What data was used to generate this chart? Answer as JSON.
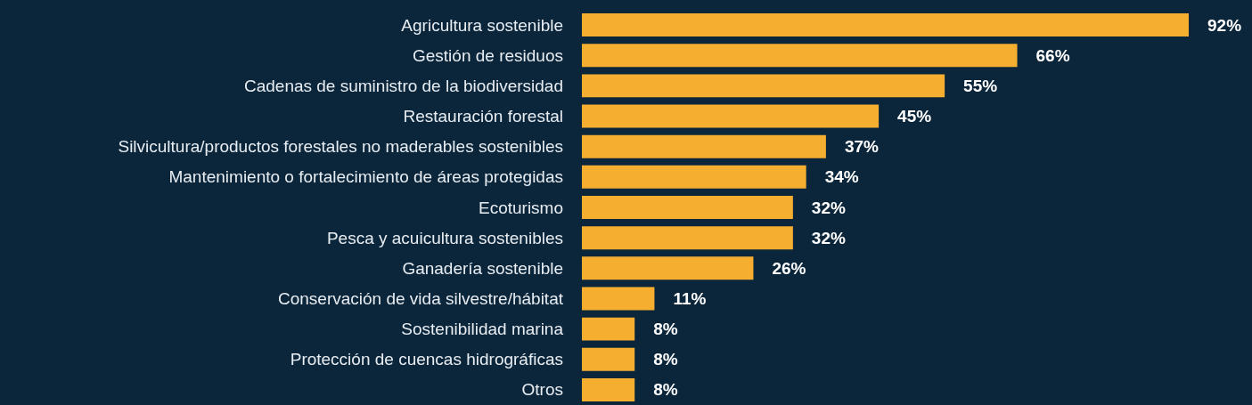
{
  "chart_data": {
    "type": "bar",
    "orientation": "horizontal",
    "categories": [
      "Agricultura sostenible",
      "Gestión de residuos",
      "Cadenas de suministro de la biodiversidad",
      "Restauración forestal",
      "Silvicultura/productos forestales no maderables sostenibles",
      "Mantenimiento o fortalecimiento de áreas protegidas",
      "Ecoturismo",
      "Pesca y acuicultura sostenibles",
      "Ganadería sostenible",
      "Conservación de vida silvestre/hábitat",
      "Sostenibilidad marina",
      "Protección de cuencas hidrográficas",
      "Otros"
    ],
    "values": [
      92,
      66,
      55,
      45,
      37,
      34,
      32,
      32,
      26,
      11,
      8,
      8,
      8
    ],
    "value_labels": [
      "92%",
      "66%",
      "55%",
      "45%",
      "37%",
      "34%",
      "32%",
      "32%",
      "26%",
      "11%",
      "8%",
      "8%",
      "8%"
    ],
    "color": "#f6ae31"
  }
}
